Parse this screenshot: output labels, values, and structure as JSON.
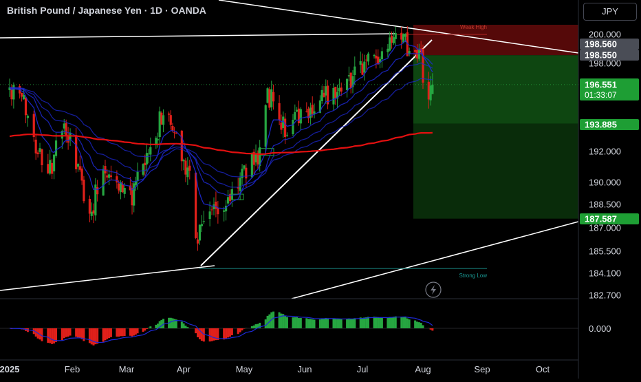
{
  "header": {
    "symbol_title": "British Pound / Japanese Yen · 1D · OANDA",
    "currency_button": "JPY"
  },
  "colors": {
    "background": "#000000",
    "bull": "#26a641",
    "bear": "#e0201a",
    "ema_blue": "#1e2ad8",
    "sma_red": "#e31010",
    "axis_text": "#d1d4dc",
    "stop_zone": "#5a0a0a",
    "target_zone": "#0f4a12"
  },
  "chart_data": [
    {
      "type": "candlestick",
      "instrument": "GBP/JPY",
      "timeframe": "1D",
      "source": "OANDA",
      "x_labels": [
        "2025",
        "Feb",
        "Mar",
        "Apr",
        "May",
        "Jun",
        "Jul",
        "Aug",
        "Sep",
        "Oct"
      ],
      "y_ticks": [
        "200.000",
        "198.000",
        "192.000",
        "190.000",
        "188.500",
        "187.000",
        "185.500",
        "184.100",
        "182.700"
      ],
      "ylim": [
        182.7,
        200.6
      ],
      "price_tags": [
        {
          "value": "198.560",
          "style": "gray"
        },
        {
          "value": "198.550",
          "style": "gray"
        },
        {
          "value": "196.551",
          "sub": "01:33:07",
          "style": "green"
        },
        {
          "value": "193.885",
          "style": "green"
        },
        {
          "value": "187.587",
          "style": "green"
        }
      ],
      "annotations": [
        {
          "text": "Weak High",
          "price": 200.0
        },
        {
          "text": "Strong Low",
          "price": 184.4
        }
      ],
      "anchors": [
        {
          "date": "2025-01-01",
          "close": 196.2
        },
        {
          "date": "2025-01-08",
          "close": 195.3
        },
        {
          "date": "2025-01-13",
          "close": 193.0
        },
        {
          "date": "2025-01-20",
          "close": 190.3
        },
        {
          "date": "2025-01-28",
          "close": 193.8
        },
        {
          "date": "2025-02-05",
          "close": 190.3
        },
        {
          "date": "2025-02-10",
          "close": 187.7
        },
        {
          "date": "2025-02-17",
          "close": 191.2
        },
        {
          "date": "2025-02-24",
          "close": 190.0
        },
        {
          "date": "2025-03-04",
          "close": 189.0
        },
        {
          "date": "2025-03-14",
          "close": 192.0
        },
        {
          "date": "2025-03-21",
          "close": 194.8
        },
        {
          "date": "2025-03-28",
          "close": 193.0
        },
        {
          "date": "2025-04-04",
          "close": 190.5
        },
        {
          "date": "2025-04-07",
          "close": 186.3
        },
        {
          "date": "2025-04-11",
          "close": 187.9
        },
        {
          "date": "2025-04-21",
          "close": 188.3
        },
        {
          "date": "2025-04-30",
          "close": 190.6
        },
        {
          "date": "2025-05-08",
          "close": 191.8
        },
        {
          "date": "2025-05-13",
          "close": 196.0
        },
        {
          "date": "2025-05-22",
          "close": 193.5
        },
        {
          "date": "2025-05-30",
          "close": 194.3
        },
        {
          "date": "2025-06-05",
          "close": 195.1
        },
        {
          "date": "2025-06-12",
          "close": 195.8
        },
        {
          "date": "2025-06-20",
          "close": 196.8
        },
        {
          "date": "2025-06-30",
          "close": 197.4
        },
        {
          "date": "2025-07-03",
          "close": 198.5
        },
        {
          "date": "2025-07-10",
          "close": 198.0
        },
        {
          "date": "2025-07-16",
          "close": 199.2
        },
        {
          "date": "2025-07-22",
          "close": 199.6
        },
        {
          "date": "2025-07-25",
          "close": 199.0
        },
        {
          "date": "2025-07-29",
          "close": 198.2
        },
        {
          "date": "2025-07-31",
          "close": 199.4
        },
        {
          "date": "2025-08-01",
          "close": 196.0
        },
        {
          "date": "2025-08-04",
          "close": 195.8
        },
        {
          "date": "2025-08-06",
          "close": 196.55
        }
      ],
      "indicator": {
        "type": "histogram",
        "zero_label": "0.000"
      }
    }
  ]
}
